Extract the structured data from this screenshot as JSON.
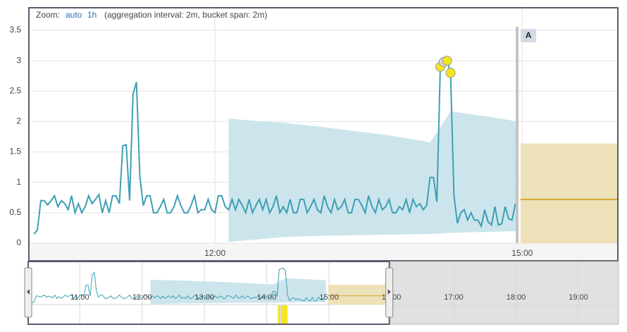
{
  "chart_data": {
    "type": "line",
    "zoom_label": "Zoom:",
    "zoom_options": [
      "auto",
      "1h"
    ],
    "zoom_note": "(aggregation interval: 2m, bucket span: 2m)",
    "color": "#3d9fb5",
    "x": [
      614,
      616,
      618,
      620,
      622,
      624,
      626,
      628,
      630,
      632,
      634,
      636,
      638,
      640,
      642,
      644,
      646,
      648,
      650,
      652,
      654,
      656,
      658,
      660,
      662,
      664,
      666,
      668,
      670,
      672,
      674,
      676,
      678,
      680,
      682,
      684,
      686,
      688,
      690,
      692,
      694,
      696,
      698,
      700,
      702,
      704,
      706,
      708,
      710,
      712,
      714,
      716,
      718,
      720,
      722,
      724,
      726,
      728,
      730,
      732,
      734,
      736,
      738,
      740,
      742,
      744,
      746,
      748,
      750,
      752,
      754,
      756,
      758,
      760,
      762,
      764,
      766,
      768,
      770,
      772,
      774,
      776,
      778,
      780,
      782,
      784,
      786,
      788,
      790,
      792,
      794,
      796,
      798,
      800,
      802,
      804,
      806,
      808,
      810,
      812,
      814,
      816,
      818,
      820,
      822,
      824,
      826,
      828,
      830,
      832,
      834,
      836,
      838,
      840,
      842,
      844,
      846,
      848,
      850,
      852,
      854,
      856,
      858,
      860,
      862,
      864,
      866,
      868,
      870,
      872,
      874,
      876,
      878,
      880,
      882,
      884,
      886,
      888,
      890,
      892,
      894,
      896
    ],
    "values": [
      0.15,
      0.22,
      0.7,
      0.7,
      0.63,
      0.7,
      0.78,
      0.6,
      0.7,
      0.65,
      0.55,
      0.78,
      0.5,
      0.65,
      0.5,
      0.6,
      0.78,
      0.65,
      0.72,
      0.8,
      0.5,
      0.7,
      0.5,
      0.78,
      0.78,
      0.65,
      1.6,
      1.62,
      0.7,
      2.45,
      2.65,
      1.1,
      0.62,
      0.78,
      0.78,
      0.5,
      0.5,
      0.6,
      0.72,
      0.5,
      0.5,
      0.6,
      0.78,
      0.62,
      0.5,
      0.5,
      0.62,
      0.78,
      0.5,
      0.55,
      0.55,
      0.72,
      0.55,
      0.5,
      0.78,
      0.78,
      0.6,
      0.55,
      0.72,
      0.55,
      0.72,
      0.62,
      0.5,
      0.72,
      0.5,
      0.62,
      0.72,
      0.55,
      0.72,
      0.5,
      0.6,
      0.78,
      0.5,
      0.6,
      0.5,
      0.72,
      0.5,
      0.5,
      0.72,
      0.72,
      0.5,
      0.6,
      0.72,
      0.55,
      0.5,
      0.78,
      0.6,
      0.5,
      0.72,
      0.55,
      0.6,
      0.72,
      0.5,
      0.5,
      0.72,
      0.72,
      0.62,
      0.5,
      0.78,
      0.6,
      0.5,
      0.72,
      0.55,
      0.6,
      0.72,
      0.5,
      0.5,
      0.6,
      0.55,
      0.72,
      0.5,
      0.72,
      0.6,
      0.65,
      0.55,
      0.62,
      1.08,
      1.08,
      0.68,
      2.9,
      2.98,
      3.0,
      2.8,
      0.78,
      0.33,
      0.5,
      0.55,
      0.38,
      0.5,
      0.38,
      0.38,
      0.28,
      0.55,
      0.35,
      0.3,
      0.6,
      0.3,
      0.32,
      0.6,
      0.4,
      0.38,
      0.65
    ],
    "bounds": {
      "color": "#cce5ec",
      "x": [
        728,
        740,
        760,
        780,
        800,
        820,
        846,
        852,
        858,
        870,
        885,
        897
      ],
      "upper": [
        2.05,
        2.02,
        1.98,
        1.92,
        1.85,
        1.78,
        1.66,
        1.9,
        2.17,
        2.12,
        2.06,
        2.0
      ],
      "lower": [
        0.02,
        0.05,
        0.1,
        0.12,
        0.13,
        0.14,
        0.15,
        0.16,
        0.17,
        0.18,
        0.19,
        0.2
      ]
    },
    "anomalies": {
      "x": [
        852,
        854,
        856,
        858
      ],
      "values": [
        2.9,
        2.98,
        3.0,
        2.8
      ],
      "colors": [
        "#f5e51c",
        "#d8d8d8",
        "#f5e51c",
        "#f5e51c"
      ]
    },
    "forecast": {
      "x": [
        899,
        956
      ],
      "upper": [
        1.64,
        1.64
      ],
      "lower": [
        0,
        0
      ],
      "values": [
        0.72,
        0.72
      ],
      "color": "#d4a72c",
      "fill": "#ede1ba"
    },
    "annotation": {
      "x": 897,
      "label": "A"
    },
    "xlim": [
      611,
      956
    ],
    "ylim": [
      0,
      3.5
    ],
    "yticks": [
      0,
      0.5,
      1,
      1.5,
      2,
      2.5,
      3,
      3.5
    ],
    "xticks": [
      {
        "value": 720,
        "label": "12:00"
      },
      {
        "value": 900,
        "label": "15:00"
      }
    ],
    "grid": true,
    "context": {
      "xlim": [
        611,
        1178
      ],
      "brush": [
        611,
        958
      ],
      "xticks": [
        {
          "value": 660,
          "label": "11:00"
        },
        {
          "value": 720,
          "label": "12:00"
        },
        {
          "value": 780,
          "label": "13:00"
        },
        {
          "value": 840,
          "label": "14:00"
        },
        {
          "value": 900,
          "label": "15:00"
        },
        {
          "value": 960,
          "label": "16:00"
        },
        {
          "value": 1020,
          "label": "17:00"
        },
        {
          "value": 1080,
          "label": "18:00"
        },
        {
          "value": 1140,
          "label": "19:00"
        }
      ]
    }
  }
}
